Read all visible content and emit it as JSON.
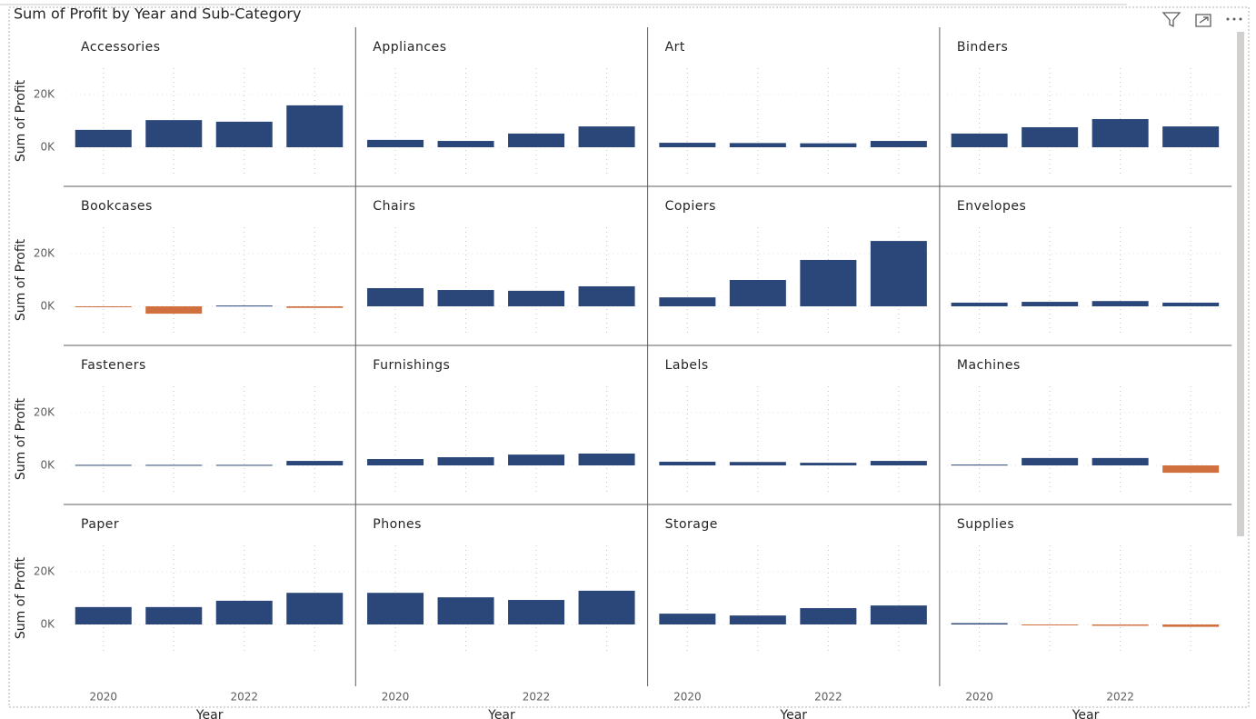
{
  "chart_data": {
    "type": "bar",
    "title": "Sum of Profit by Year and Sub-Category",
    "x_label": "Year",
    "y_label": "Sum of Profit",
    "categories": [
      "2020",
      null,
      "2022",
      null
    ],
    "ylim": [
      -10000,
      30000
    ],
    "yticks": [
      {
        "value": 0,
        "label": "0K"
      },
      {
        "value": 20000,
        "label": "20K"
      }
    ],
    "color": "#2b4678",
    "negative_color": "#d0703f",
    "panels": [
      {
        "name": "Accessories",
        "values": [
          6600,
          10300,
          9700,
          15900
        ]
      },
      {
        "name": "Appliances",
        "values": [
          2800,
          2400,
          5200,
          7900
        ]
      },
      {
        "name": "Art",
        "values": [
          1700,
          1600,
          1500,
          2400
        ]
      },
      {
        "name": "Binders",
        "values": [
          5200,
          7600,
          10700,
          7900
        ]
      },
      {
        "name": "Bookcases",
        "values": [
          -300,
          -2800,
          300,
          -600
        ]
      },
      {
        "name": "Chairs",
        "values": [
          6900,
          6200,
          5900,
          7600
        ]
      },
      {
        "name": "Copiers",
        "values": [
          3400,
          10000,
          17600,
          24800
        ]
      },
      {
        "name": "Envelopes",
        "values": [
          1400,
          1700,
          2000,
          1400
        ]
      },
      {
        "name": "Fasteners",
        "values": [
          200,
          200,
          200,
          1700
        ]
      },
      {
        "name": "Furnishings",
        "values": [
          2400,
          3100,
          4100,
          4500
        ]
      },
      {
        "name": "Labels",
        "values": [
          1400,
          1300,
          1000,
          1700
        ]
      },
      {
        "name": "Machines",
        "values": [
          300,
          2800,
          2800,
          -2800
        ]
      },
      {
        "name": "Paper",
        "values": [
          6600,
          6600,
          9000,
          12000
        ]
      },
      {
        "name": "Phones",
        "values": [
          12000,
          10300,
          9300,
          12800
        ]
      },
      {
        "name": "Storage",
        "values": [
          4100,
          3400,
          6200,
          7200
        ]
      },
      {
        "name": "Supplies",
        "values": [
          500,
          -300,
          -500,
          -900
        ]
      }
    ]
  }
}
